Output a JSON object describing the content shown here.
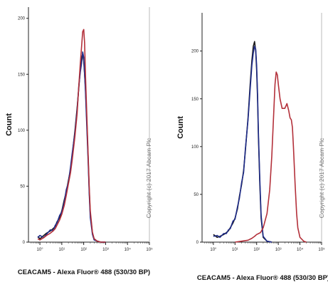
{
  "chart_data": [
    {
      "type": "line",
      "panel": "left",
      "ylabel": "Count",
      "xlabel": "CEACAM5 - Alexa Fluor® 488 (530/30 BP)",
      "x_scale": "log",
      "xlim": [
        0.3,
        100000
      ],
      "ylim": [
        0,
        210
      ],
      "x_ticks": [
        "10°",
        "10¹",
        "10²",
        "10³",
        "10⁴",
        "10⁵"
      ],
      "y_ticks": [
        "0",
        "50",
        "100",
        "150",
        "200"
      ],
      "annotation": "Copyright (c) 2017 Abcam Plc",
      "series": [
        {
          "color": "#1a1a1a",
          "x": [
            0.8,
            1.0,
            1.5,
            2,
            3,
            4,
            5,
            6,
            8,
            10,
            13,
            16,
            20,
            25,
            30,
            40,
            50,
            60,
            70,
            80,
            90,
            100,
            120,
            140,
            160,
            180,
            200,
            250,
            300,
            400,
            600,
            1000
          ],
          "y": [
            5,
            3,
            6,
            8,
            10,
            12,
            14,
            18,
            22,
            28,
            38,
            45,
            55,
            65,
            78,
            100,
            120,
            138,
            155,
            165,
            168,
            162,
            138,
            105,
            75,
            45,
            25,
            8,
            3,
            1,
            0,
            0
          ]
        },
        {
          "color": "#1f2c8a",
          "x": [
            0.8,
            1.0,
            1.5,
            2,
            3,
            4,
            5,
            6,
            8,
            10,
            13,
            16,
            20,
            25,
            30,
            40,
            50,
            60,
            70,
            80,
            90,
            100,
            120,
            140,
            160,
            180,
            200,
            250,
            300,
            400,
            600,
            1000
          ],
          "y": [
            4,
            6,
            4,
            7,
            11,
            10,
            15,
            17,
            24,
            27,
            36,
            47,
            53,
            67,
            80,
            98,
            118,
            140,
            152,
            160,
            170,
            165,
            135,
            100,
            72,
            42,
            22,
            7,
            2,
            1,
            0,
            0
          ]
        },
        {
          "color": "#b3303a",
          "x": [
            0.8,
            1.0,
            1.5,
            2,
            3,
            4,
            5,
            6,
            8,
            10,
            13,
            16,
            20,
            25,
            30,
            40,
            50,
            60,
            70,
            80,
            90,
            100,
            110,
            120,
            140,
            160,
            180,
            200,
            250,
            300,
            400,
            600,
            1000
          ],
          "y": [
            3,
            2,
            4,
            6,
            8,
            10,
            12,
            15,
            20,
            25,
            33,
            42,
            52,
            62,
            74,
            95,
            115,
            140,
            160,
            175,
            188,
            190,
            178,
            150,
            110,
            78,
            48,
            28,
            9,
            3,
            1,
            0,
            0
          ]
        }
      ]
    },
    {
      "type": "line",
      "panel": "right",
      "ylabel": "Count",
      "xlabel": "CEACAM5 - Alexa Fluor® 488 (530/30 BP)",
      "x_scale": "log",
      "xlim": [
        0.3,
        100000
      ],
      "ylim": [
        0,
        240
      ],
      "x_ticks": [
        "10°",
        "10¹",
        "10²",
        "10³",
        "10⁴",
        "10⁵"
      ],
      "y_ticks": [
        "0",
        "50",
        "100",
        "150",
        "200"
      ],
      "annotation": "Copyright (c) 2017 Abcam Plc",
      "series": [
        {
          "color": "#1a1a1a",
          "x": [
            1.0,
            1.5,
            2,
            3,
            4,
            5,
            6,
            8,
            10,
            13,
            16,
            20,
            25,
            30,
            40,
            50,
            60,
            70,
            80,
            90,
            100,
            110,
            120,
            140,
            160,
            200,
            300,
            500
          ],
          "y": [
            8,
            5,
            6,
            8,
            10,
            12,
            15,
            20,
            25,
            35,
            48,
            60,
            75,
            95,
            130,
            165,
            190,
            205,
            210,
            200,
            180,
            150,
            110,
            60,
            25,
            5,
            1,
            0
          ]
        },
        {
          "color": "#1f2c8a",
          "x": [
            1.0,
            1.5,
            2,
            3,
            4,
            5,
            6,
            8,
            10,
            13,
            16,
            20,
            25,
            30,
            40,
            50,
            60,
            70,
            80,
            90,
            100,
            110,
            120,
            140,
            160,
            200,
            300,
            500
          ],
          "y": [
            6,
            7,
            5,
            9,
            9,
            13,
            14,
            22,
            24,
            37,
            46,
            62,
            73,
            97,
            128,
            160,
            185,
            198,
            205,
            202,
            185,
            155,
            115,
            65,
            28,
            6,
            1,
            0
          ]
        },
        {
          "color": "#b3303a",
          "x": [
            10,
            20,
            40,
            60,
            80,
            100,
            150,
            200,
            300,
            400,
            500,
            600,
            700,
            800,
            900,
            1000,
            1200,
            1500,
            2000,
            2500,
            3000,
            3500,
            4000,
            4500,
            5000,
            6000,
            7000,
            8000,
            10000,
            15000,
            20000
          ],
          "y": [
            0,
            1,
            2,
            4,
            6,
            8,
            10,
            15,
            30,
            55,
            90,
            130,
            165,
            178,
            175,
            165,
            150,
            140,
            140,
            145,
            138,
            130,
            128,
            120,
            100,
            60,
            30,
            15,
            5,
            1,
            0
          ]
        }
      ]
    }
  ]
}
